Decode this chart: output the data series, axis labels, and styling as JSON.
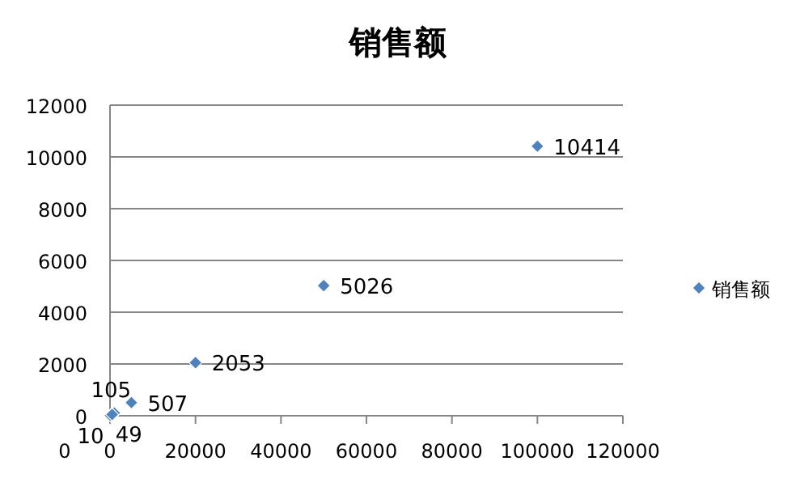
{
  "chart_data": {
    "type": "scatter",
    "title": "销售额",
    "x": [
      100,
      500,
      1000,
      5000,
      20000,
      50000,
      100000
    ],
    "series": [
      {
        "name": "销售额",
        "color": "#4f81bd",
        "values": [
          10,
          49,
          105,
          507,
          2053,
          5026,
          10414
        ]
      }
    ],
    "xlim": [
      0,
      120000
    ],
    "xticks": [
      0,
      20000,
      40000,
      60000,
      80000,
      100000,
      120000
    ],
    "ylim": [
      0,
      12000
    ],
    "yticks": [
      0,
      2000,
      4000,
      6000,
      8000,
      10000,
      12000
    ],
    "grid": "y",
    "legend": "right",
    "marker": "diamond",
    "data_labels": true,
    "annotations": [
      "0"
    ]
  }
}
